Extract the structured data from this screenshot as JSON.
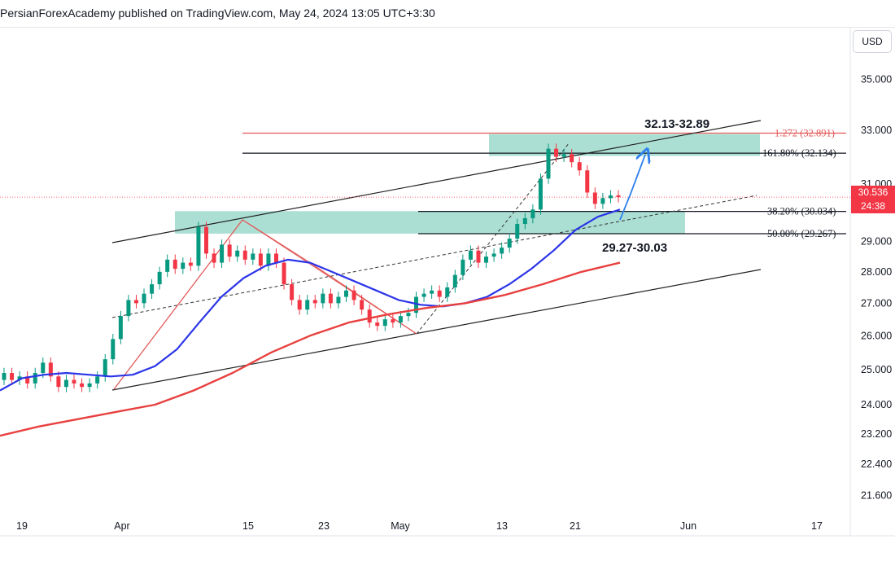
{
  "header": {
    "text": "PersianForexAcademy published on TradingView.com, May 24, 2024 13:05 UTC+3:30"
  },
  "currency": "USD",
  "colors": {
    "up": "#089981",
    "down": "#f23645",
    "ma_fast": "#2b35e8",
    "ma_slow": "#e8403f",
    "zone": "#8fd4c4",
    "arrow": "#2f80ed",
    "fib_red": "#e35a5a"
  },
  "chart_data": {
    "type": "candlestick",
    "y_axis": {
      "ticks": [
        "35.000",
        "33.000",
        "31.000",
        "29.000",
        "28.000",
        "27.000",
        "26.000",
        "25.000",
        "24.000",
        "23.200",
        "22.400",
        "21.600"
      ],
      "scale": "log"
    },
    "x_axis": {
      "ticks": [
        "19",
        "Apr",
        "15",
        "23",
        "May",
        "13",
        "21",
        "Jun",
        "17"
      ]
    },
    "last_price": "30.536",
    "countdown": "24:38",
    "fib_levels": [
      {
        "label": "1.272 (32.891)",
        "value": 32.891,
        "color": "#e35a5a"
      },
      {
        "label": "161.80% (32.134)",
        "value": 32.134,
        "color": "#131722"
      },
      {
        "label": "38.20% (30.034)",
        "value": 30.034,
        "color": "#131722"
      },
      {
        "label": "50.00% (29.267)",
        "value": 29.267,
        "color": "#131722"
      }
    ],
    "zones": [
      {
        "label": "32.13-32.89",
        "low": 32.13,
        "high": 32.89
      },
      {
        "label": "29.27-30.03",
        "low": 29.27,
        "high": 30.03
      }
    ],
    "series": [
      {
        "name": "ma_fast",
        "values": [
          24.4,
          24.75,
          24.85,
          24.9,
          24.85,
          24.8,
          24.85,
          25.1,
          25.6,
          26.4,
          27.2,
          27.8,
          28.2,
          28.4,
          28.3,
          28.0,
          27.7,
          27.4,
          27.1,
          26.95,
          26.9,
          27.0,
          27.2,
          27.6,
          28.1,
          28.7,
          29.4,
          29.85,
          30.1
        ]
      },
      {
        "name": "ma_slow",
        "values": [
          23.15,
          23.4,
          23.6,
          23.8,
          24.0,
          24.4,
          24.9,
          25.5,
          26.0,
          26.4,
          26.65,
          26.85,
          27.0,
          27.25,
          27.6,
          28.0,
          28.3
        ]
      }
    ],
    "candles": [
      24.9,
      24.7,
      24.8,
      24.6,
      24.9,
      25.2,
      24.8,
      24.5,
      24.7,
      24.6,
      24.5,
      24.6,
      24.8,
      25.3,
      25.9,
      26.6,
      27.1,
      27.0,
      27.3,
      27.6,
      28.0,
      28.4,
      28.1,
      28.3,
      28.2,
      29.5,
      28.6,
      28.3,
      28.9,
      28.5,
      28.7,
      28.4,
      28.6,
      28.2,
      28.6,
      28.3,
      27.6,
      27.1,
      26.8,
      27.1,
      27.0,
      27.3,
      27.0,
      27.2,
      27.4,
      27.1,
      26.8,
      26.4,
      26.3,
      26.5,
      26.4,
      26.6,
      26.7,
      27.2,
      27.3,
      27.4,
      27.2,
      27.5,
      27.9,
      28.4,
      28.7,
      28.3,
      28.5,
      28.6,
      28.8,
      29.1,
      29.6,
      29.8,
      30.1,
      31.2,
      32.3,
      32.0,
      32.1,
      31.8,
      31.5,
      30.7,
      30.3,
      30.5,
      30.6,
      30.536
    ]
  }
}
